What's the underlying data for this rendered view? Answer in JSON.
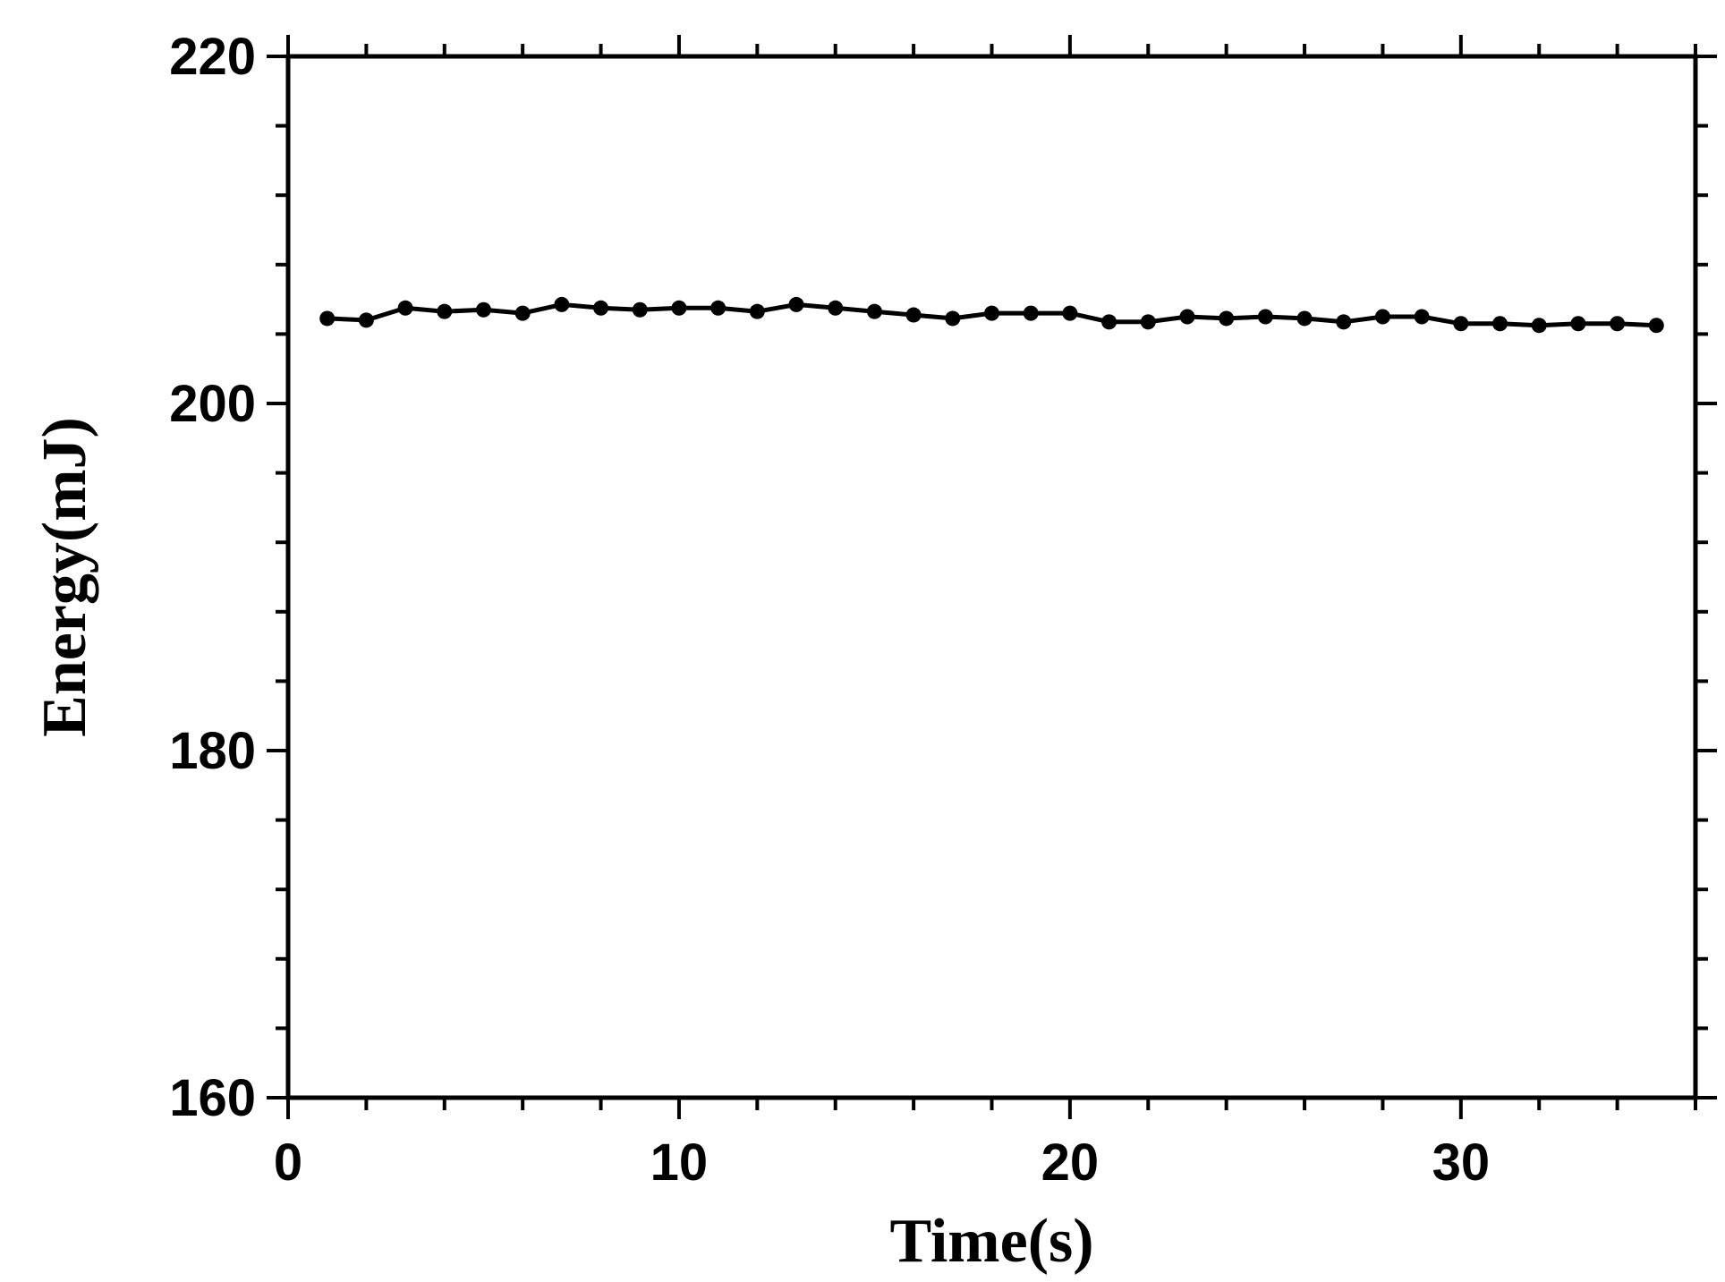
{
  "chart_data": {
    "type": "line",
    "xlabel": "Time(s)",
    "ylabel": "Energy(mJ)",
    "xlim": [
      0,
      36
    ],
    "ylim": [
      160,
      220
    ],
    "x_ticks": [
      0,
      10,
      20,
      30
    ],
    "x_tick_labels": [
      "0",
      "10",
      "20",
      "30"
    ],
    "x_minor_step": 2,
    "y_ticks": [
      160,
      180,
      200,
      220
    ],
    "y_tick_labels": [
      "160",
      "180",
      "200",
      "220"
    ],
    "y_minor_step": 4,
    "grid": false,
    "series": [
      {
        "marker": "circle",
        "color": "#000000",
        "x": [
          1,
          2,
          3,
          4,
          5,
          6,
          7,
          8,
          9,
          10,
          11,
          12,
          13,
          14,
          15,
          16,
          17,
          18,
          19,
          20,
          21,
          22,
          23,
          24,
          25,
          26,
          27,
          28,
          29,
          30,
          31,
          32,
          33,
          34,
          35
        ],
        "y": [
          204.9,
          204.8,
          205.5,
          205.3,
          205.4,
          205.2,
          205.7,
          205.5,
          205.4,
          205.5,
          205.5,
          205.3,
          205.7,
          205.5,
          205.3,
          205.1,
          204.9,
          205.2,
          205.2,
          205.2,
          204.7,
          204.7,
          205.0,
          204.9,
          205.0,
          204.9,
          204.7,
          205.0,
          205.0,
          204.6,
          204.6,
          204.5,
          204.6,
          204.6,
          204.5
        ]
      }
    ]
  }
}
